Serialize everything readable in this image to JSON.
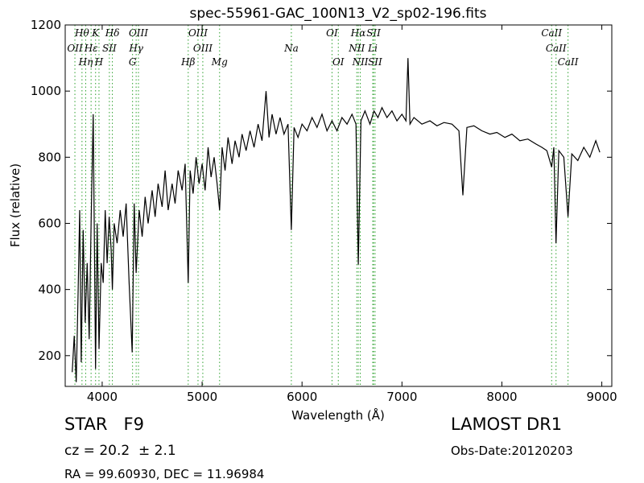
{
  "chart_data": {
    "type": "line",
    "title": "spec-55961-GAC_100N13_V2_sp02-196.fits",
    "xlabel": "Wavelength (Å)",
    "ylabel": "Flux (relative)",
    "xlim": [
      3630,
      9100
    ],
    "ylim": [
      107,
      1200
    ],
    "xticks": [
      4000,
      5000,
      6000,
      7000,
      8000,
      9000
    ],
    "yticks": [
      200,
      400,
      600,
      800,
      1000,
      1200
    ],
    "color": "#000000",
    "line_color": "#2ca02c",
    "x": [
      3700,
      3720,
      3740,
      3760,
      3775,
      3790,
      3810,
      3830,
      3850,
      3870,
      3890,
      3910,
      3934,
      3950,
      3968,
      3990,
      4010,
      4030,
      4050,
      4070,
      4090,
      4102,
      4120,
      4150,
      4180,
      4210,
      4240,
      4270,
      4300,
      4320,
      4340,
      4370,
      4400,
      4430,
      4460,
      4500,
      4530,
      4560,
      4600,
      4630,
      4660,
      4700,
      4730,
      4760,
      4800,
      4830,
      4861,
      4880,
      4910,
      4940,
      4970,
      5000,
      5030,
      5060,
      5090,
      5120,
      5150,
      5175,
      5200,
      5230,
      5260,
      5300,
      5330,
      5370,
      5400,
      5440,
      5480,
      5520,
      5560,
      5600,
      5640,
      5670,
      5700,
      5740,
      5780,
      5820,
      5860,
      5893,
      5920,
      5960,
      6000,
      6050,
      6100,
      6150,
      6200,
      6250,
      6300,
      6350,
      6400,
      6450,
      6500,
      6540,
      6563,
      6590,
      6630,
      6680,
      6720,
      6760,
      6800,
      6850,
      6900,
      6950,
      7000,
      7040,
      7060,
      7080,
      7120,
      7200,
      7280,
      7350,
      7420,
      7500,
      7570,
      7610,
      7650,
      7720,
      7800,
      7880,
      7950,
      8030,
      8100,
      8180,
      8260,
      8340,
      8400,
      8450,
      8498,
      8520,
      8542,
      8570,
      8620,
      8662,
      8700,
      8760,
      8820,
      8880,
      8940,
      8980
    ],
    "values": [
      150,
      260,
      120,
      400,
      640,
      180,
      580,
      300,
      480,
      250,
      620,
      930,
      160,
      600,
      220,
      480,
      420,
      640,
      480,
      620,
      520,
      400,
      600,
      540,
      640,
      560,
      660,
      420,
      210,
      660,
      450,
      640,
      560,
      680,
      600,
      700,
      620,
      720,
      650,
      760,
      640,
      720,
      660,
      760,
      700,
      780,
      420,
      760,
      690,
      800,
      720,
      780,
      700,
      830,
      740,
      800,
      720,
      640,
      830,
      760,
      860,
      780,
      850,
      800,
      870,
      820,
      880,
      830,
      900,
      850,
      1000,
      860,
      930,
      870,
      920,
      870,
      900,
      580,
      890,
      860,
      900,
      880,
      920,
      890,
      930,
      880,
      910,
      880,
      920,
      900,
      930,
      900,
      475,
      910,
      940,
      900,
      940,
      920,
      950,
      920,
      940,
      910,
      930,
      910,
      1100,
      900,
      920,
      900,
      910,
      895,
      905,
      900,
      880,
      685,
      890,
      895,
      880,
      870,
      875,
      860,
      870,
      850,
      855,
      840,
      830,
      820,
      770,
      830,
      540,
      820,
      800,
      620,
      810,
      790,
      830,
      800,
      850,
      815
    ],
    "annotations": [
      {
        "label": "Hθ",
        "x": 3798
      },
      {
        "label": "OII",
        "x": 3727
      },
      {
        "label": "Hη",
        "x": 3835
      },
      {
        "label": "K",
        "x": 3934
      },
      {
        "label": "Hε",
        "x": 3889
      },
      {
        "label": "H",
        "x": 3968
      },
      {
        "label": "Hδ",
        "x": 4102
      },
      {
        "label": "SII",
        "x": 4072
      },
      {
        "label": "OIII",
        "x": 4363
      },
      {
        "label": "Hγ",
        "x": 4340
      },
      {
        "label": "G",
        "x": 4304
      },
      {
        "label": "OIII",
        "x": 4959
      },
      {
        "label": "OIII",
        "x": 5007
      },
      {
        "label": "Hβ",
        "x": 4861
      },
      {
        "label": "Mg",
        "x": 5175
      },
      {
        "label": "Na",
        "x": 5893
      },
      {
        "label": "OI",
        "x": 6300
      },
      {
        "label": "OI",
        "x": 6363
      },
      {
        "label": "Hα",
        "x": 6563
      },
      {
        "label": "NII",
        "x": 6548
      },
      {
        "label": "NII",
        "x": 6583
      },
      {
        "label": "SII",
        "x": 6716
      },
      {
        "label": "Li",
        "x": 6708
      },
      {
        "label": "SII",
        "x": 6731
      },
      {
        "label": "CaII",
        "x": 8498
      },
      {
        "label": "CaII",
        "x": 8542
      },
      {
        "label": "CaII",
        "x": 8662
      }
    ],
    "info": {
      "class": "STAR   F9",
      "cz": "cz = 20.2  ± 2.1",
      "coords": "RA = 99.60930, DEC = 11.96984",
      "survey": "LAMOST DR1",
      "date": "Obs-Date:20120203"
    }
  }
}
